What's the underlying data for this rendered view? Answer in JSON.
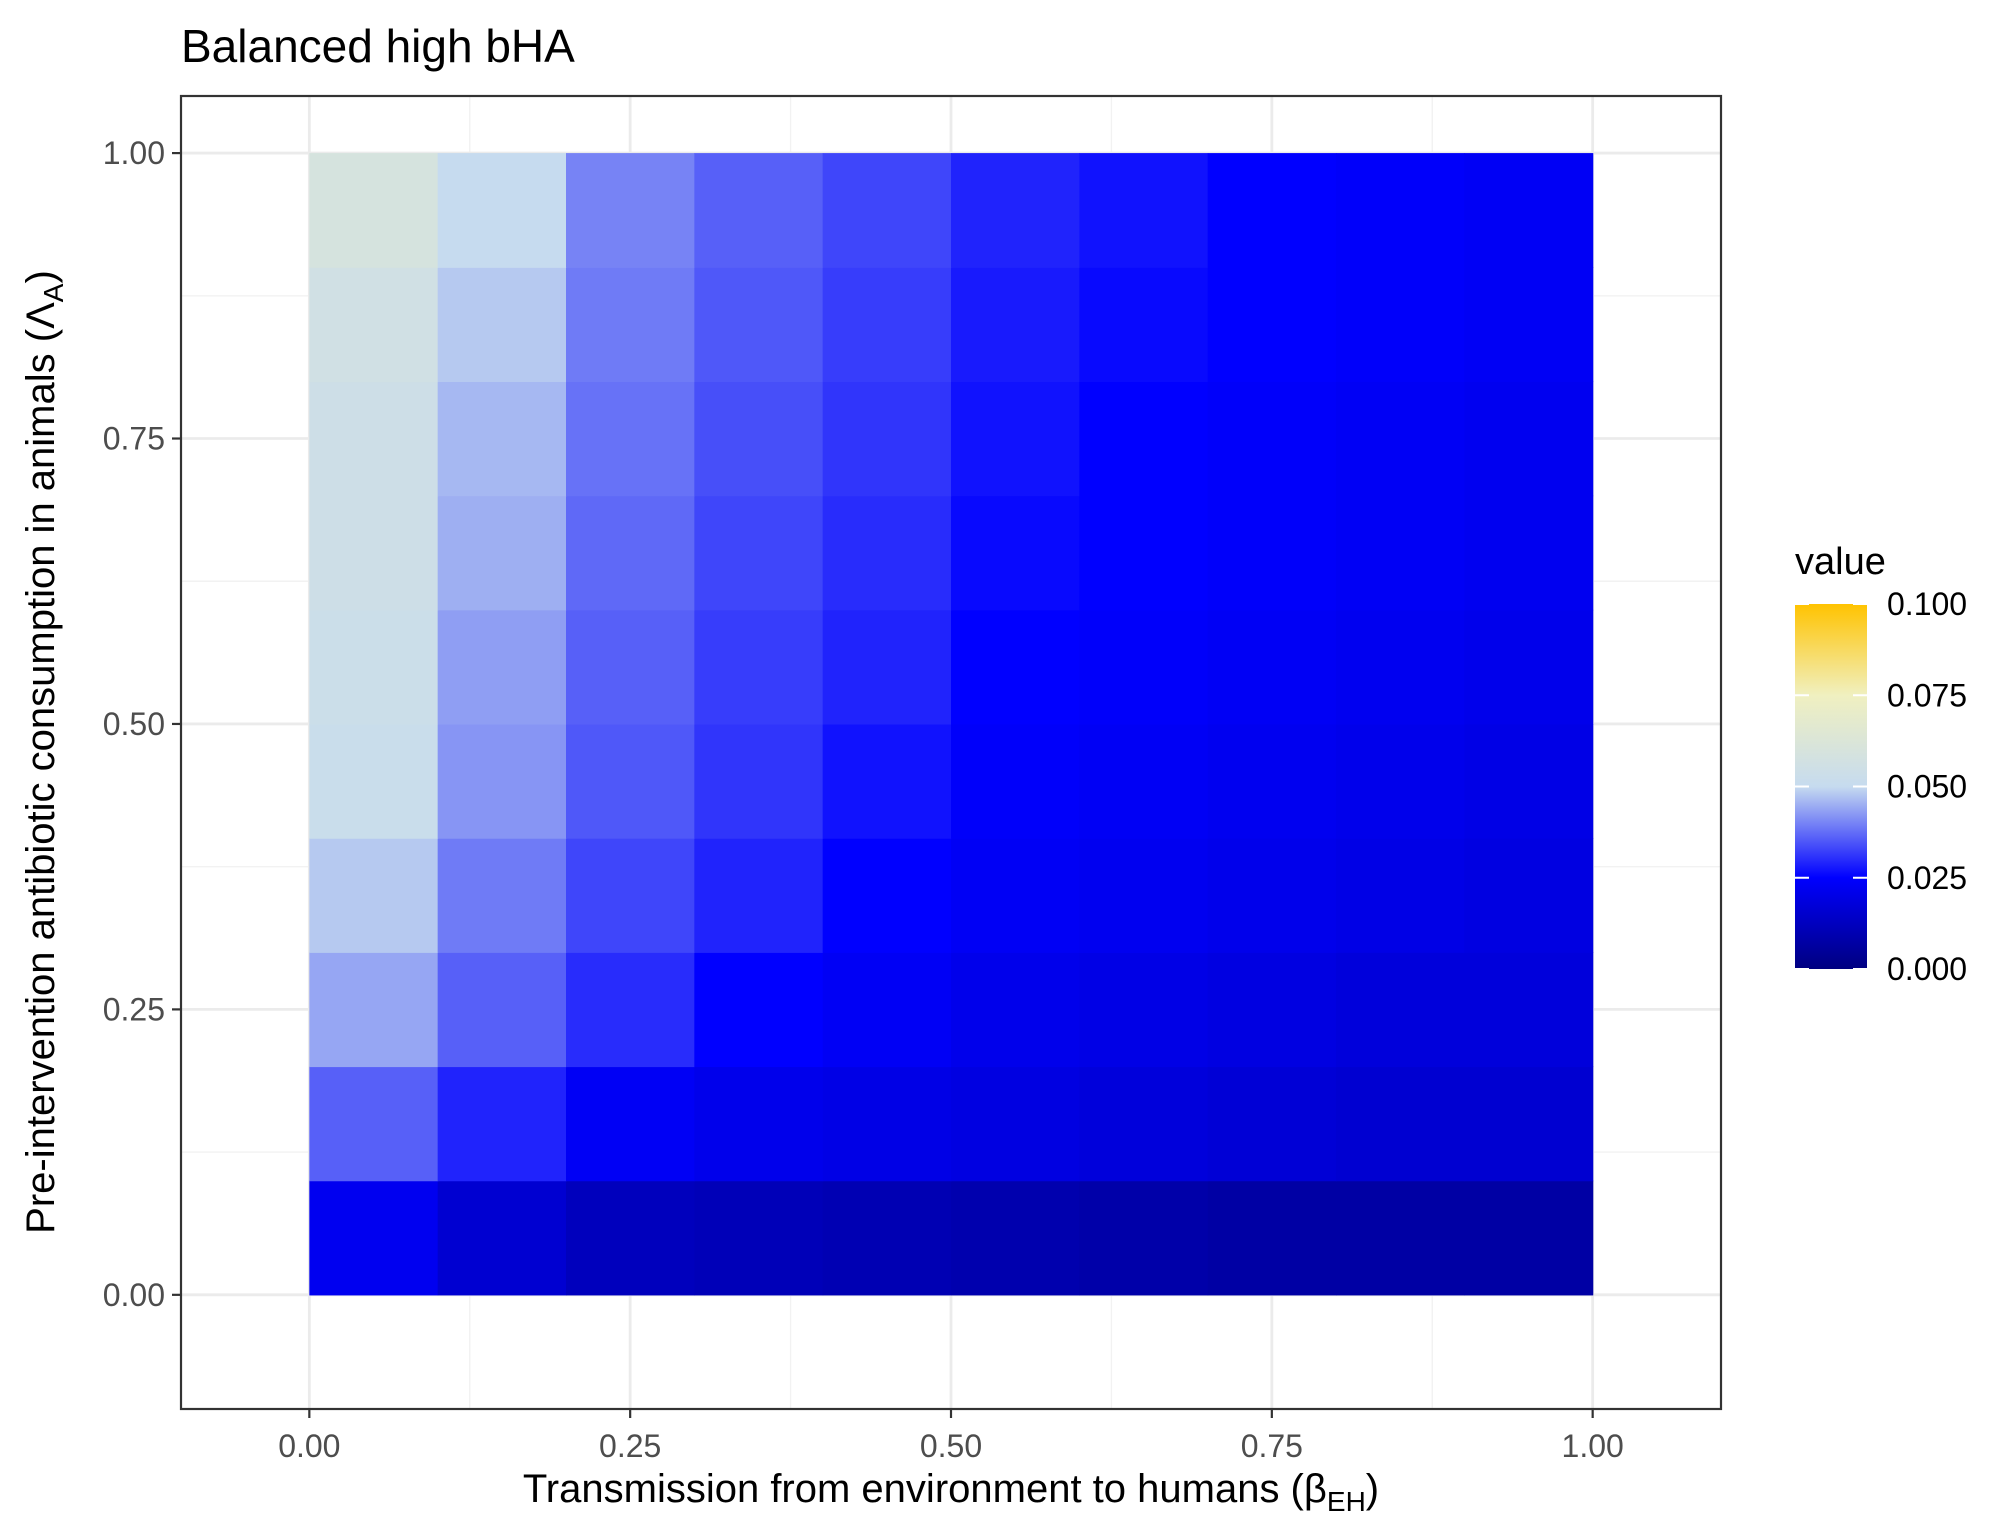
{
  "chart_data": {
    "type": "heatmap",
    "title": "Balanced high bHA",
    "xlabel": "Transmission from environment to humans (βEH)",
    "xlabel_parts": {
      "prefix": "Transmission from environment to humans (",
      "symbol": "β",
      "subscript": "EH",
      "suffix": ")"
    },
    "ylabel": "Pre-intervention antibiotic consumption in animals (ΛA)",
    "ylabel_parts": {
      "prefix": "Pre-intervention antibiotic consumption in animals (",
      "symbol": "Λ",
      "subscript": "A",
      "suffix": ")"
    },
    "xlim": [
      -0.1,
      1.1
    ],
    "ylim": [
      -0.1,
      1.05
    ],
    "x_ticks": [
      0.0,
      0.25,
      0.5,
      0.75,
      1.0
    ],
    "x_tick_labels": [
      "0.00",
      "0.25",
      "0.50",
      "0.75",
      "1.00"
    ],
    "y_ticks": [
      0.0,
      0.25,
      0.5,
      0.75,
      1.0
    ],
    "y_tick_labels": [
      "0.00",
      "0.25",
      "0.50",
      "0.75",
      "1.00"
    ],
    "grid": true,
    "x": [
      0.05,
      0.15,
      0.25,
      0.35,
      0.45,
      0.55,
      0.65,
      0.75,
      0.85,
      0.95
    ],
    "y": [
      0.05,
      0.15,
      0.25,
      0.35,
      0.45,
      0.55,
      0.65,
      0.75,
      0.85,
      0.95
    ],
    "values": [
      [
        0.022,
        0.016,
        0.012,
        0.011,
        0.01,
        0.009,
        0.008,
        0.007,
        0.007,
        0.007
      ],
      [
        0.036,
        0.029,
        0.023,
        0.021,
        0.02,
        0.019,
        0.018,
        0.017,
        0.016,
        0.016
      ],
      [
        0.044,
        0.036,
        0.03,
        0.025,
        0.023,
        0.021,
        0.02,
        0.019,
        0.018,
        0.018
      ],
      [
        0.048,
        0.039,
        0.033,
        0.029,
        0.025,
        0.023,
        0.022,
        0.021,
        0.02,
        0.019
      ],
      [
        0.052,
        0.042,
        0.035,
        0.031,
        0.027,
        0.024,
        0.023,
        0.022,
        0.021,
        0.02
      ],
      [
        0.053,
        0.043,
        0.036,
        0.032,
        0.029,
        0.025,
        0.024,
        0.023,
        0.022,
        0.021
      ],
      [
        0.054,
        0.045,
        0.037,
        0.033,
        0.03,
        0.026,
        0.025,
        0.024,
        0.023,
        0.022
      ],
      [
        0.054,
        0.046,
        0.038,
        0.034,
        0.031,
        0.027,
        0.025,
        0.024,
        0.023,
        0.022
      ],
      [
        0.056,
        0.048,
        0.039,
        0.035,
        0.032,
        0.028,
        0.026,
        0.025,
        0.024,
        0.023
      ],
      [
        0.059,
        0.05,
        0.04,
        0.036,
        0.033,
        0.029,
        0.027,
        0.025,
        0.024,
        0.023
      ]
    ],
    "legend": {
      "title": "value",
      "placement": "right",
      "range": [
        0.0,
        0.1
      ],
      "ticks": [
        0.0,
        0.025,
        0.05,
        0.075,
        0.1
      ],
      "tick_labels": [
        "0.000",
        "0.025",
        "0.050",
        "0.075",
        "0.100"
      ],
      "stops": [
        {
          "value": 0.0,
          "color": "#000080"
        },
        {
          "value": 0.025,
          "color": "#0000ff"
        },
        {
          "value": 0.05,
          "color": "#c6dbef"
        },
        {
          "value": 0.075,
          "color": "#f0f0c0"
        },
        {
          "value": 0.1,
          "color": "#ffc300"
        }
      ]
    }
  }
}
